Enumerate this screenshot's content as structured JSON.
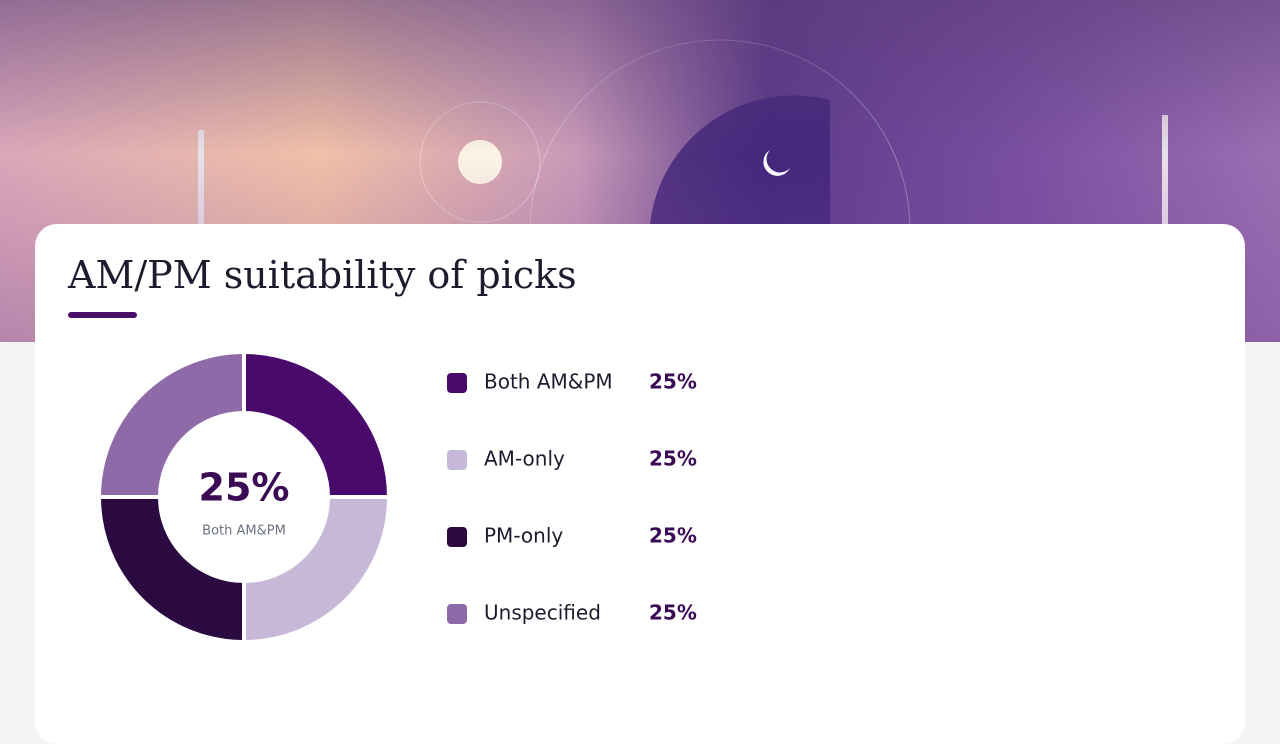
{
  "chart_data": {
    "type": "pie",
    "title": "AM/PM suitability of picks",
    "categories": [
      "Both AM&PM",
      "AM-only",
      "PM-only",
      "Unspecified"
    ],
    "values": [
      25,
      25,
      25,
      25
    ],
    "value_labels": [
      "25%",
      "25%",
      "25%",
      "25%"
    ],
    "colors": [
      "#4a0a6b",
      "#c8b8d8",
      "#2a0a40",
      "#8f6aa8"
    ]
  }
}
